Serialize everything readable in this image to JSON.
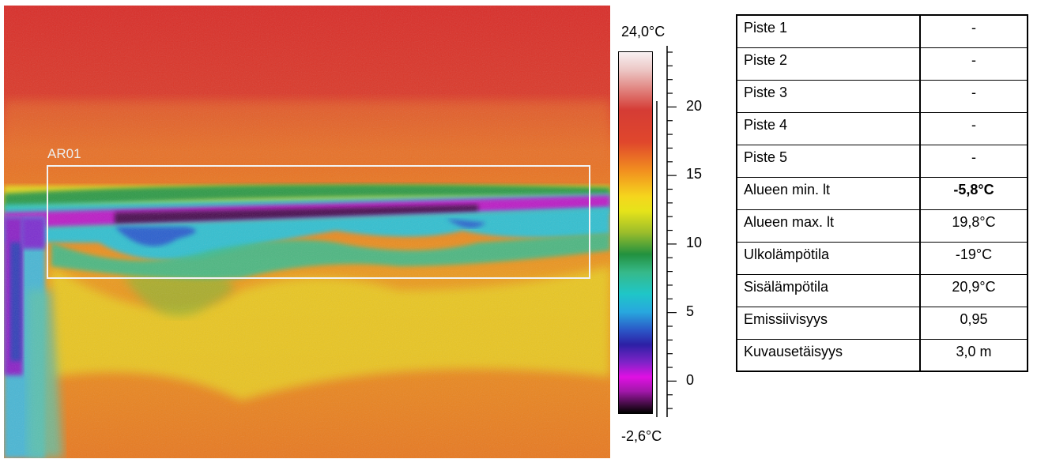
{
  "image": {
    "roi_label": "AR01"
  },
  "scale": {
    "max_label": "24,0°C",
    "min_label": "-2,6°C",
    "tick_labels": [
      "20",
      "15",
      "10",
      "5",
      "0"
    ],
    "range_c": [
      -2.6,
      24.0
    ]
  },
  "table": {
    "rows": [
      {
        "label": "Piste 1",
        "value": "-"
      },
      {
        "label": "Piste 2",
        "value": "-"
      },
      {
        "label": "Piste 3",
        "value": "-"
      },
      {
        "label": "Piste 4",
        "value": "-"
      },
      {
        "label": "Piste 5",
        "value": "-"
      },
      {
        "label": "Alueen min. lt",
        "value": "-5,8°C"
      },
      {
        "label": "Alueen max. lt",
        "value": "19,8°C"
      },
      {
        "label": "Ulkolämpötila",
        "value": "-19°C"
      },
      {
        "label": "Sisälämpötila",
        "value": "20,9°C"
      },
      {
        "label": "Emissiivisyys",
        "value": "0,95"
      },
      {
        "label": "Kuvausetäisyys",
        "value": "3,0 m"
      }
    ]
  },
  "colors": {
    "hot": "#d62e2a",
    "warm": "#e8571f",
    "yellow": "#e3c81c",
    "green": "#2f9a48",
    "cyan": "#30c7c6",
    "magenta": "#b51bbf",
    "cold": "#3a0a3c"
  }
}
